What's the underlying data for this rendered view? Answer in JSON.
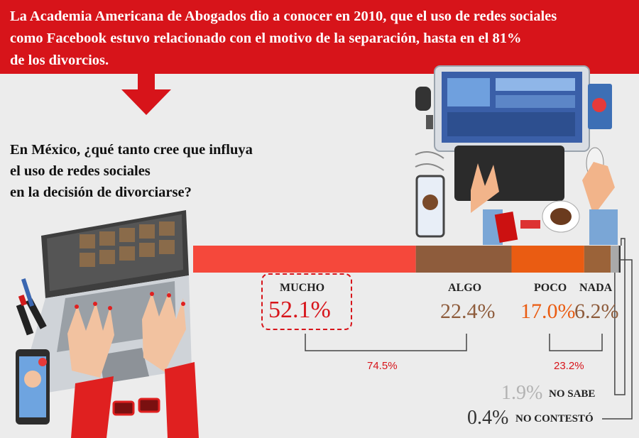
{
  "header": {
    "text": "La Academia Americana de Abogados dio a conocer en 2010, que el uso de redes sociales\ncomo Facebook estuvo relacionado con el motivo de la separación, hasta en el 81%\nde los divorcios."
  },
  "question": "En México, ¿qué tanto cree que influya\nel uso de redes sociales\nen la decisión de divorciarse?",
  "colors": {
    "banner": "#d7141a",
    "mucho": "#f5483b",
    "algo": "#8e5c3c",
    "poco": "#ea5c12",
    "nada": "#9b6339",
    "no_sabe": "#a9a9a9",
    "no_contesto": "#333333"
  },
  "chart_data": {
    "type": "bar",
    "stacked": true,
    "orientation": "horizontal",
    "categories": [
      "MUCHO",
      "ALGO",
      "POCO",
      "NADA",
      "NO SABE",
      "NO CONTESTÓ"
    ],
    "values": [
      52.1,
      22.4,
      17.0,
      6.2,
      1.9,
      0.4
    ],
    "value_labels": [
      "52.1%",
      "22.4%",
      "17.0%",
      "6.2%",
      "1.9%",
      "0.4%"
    ],
    "group_totals": [
      {
        "label": "74.5%",
        "categories": [
          "MUCHO",
          "ALGO"
        ],
        "value": 74.5
      },
      {
        "label": "23.2%",
        "categories": [
          "POCO",
          "NADA"
        ],
        "value": 23.2
      }
    ]
  }
}
